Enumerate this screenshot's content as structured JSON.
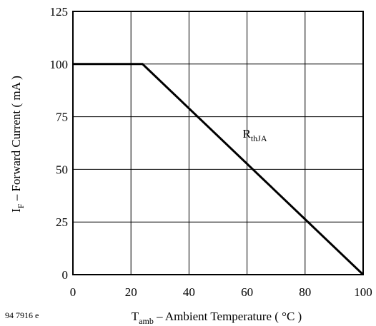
{
  "chart_data": {
    "type": "line",
    "title": "",
    "xlabel": {
      "main": "T",
      "sub": "amb",
      "rest": " – Ambient Temperature ( °C )"
    },
    "ylabel": {
      "main": "I",
      "sub": "F",
      "rest": " – Forward Current ( mA )"
    },
    "xlim": [
      0,
      100
    ],
    "ylim": [
      0,
      125
    ],
    "xticks": [
      "0",
      "20",
      "40",
      "60",
      "80",
      "100"
    ],
    "yticks": [
      "0",
      "25",
      "50",
      "75",
      "100",
      "125"
    ],
    "grid": true,
    "series": [
      {
        "x": [
          0,
          24,
          100
        ],
        "y": [
          100,
          100,
          0
        ]
      }
    ],
    "annotations": [
      {
        "main": "R",
        "sub": "thJA",
        "x": 58.5,
        "y": 65
      }
    ],
    "figure_id": "94 7916 e"
  },
  "colors": {
    "line": "#000000",
    "grid": "#000000",
    "background": "#ffffff"
  }
}
